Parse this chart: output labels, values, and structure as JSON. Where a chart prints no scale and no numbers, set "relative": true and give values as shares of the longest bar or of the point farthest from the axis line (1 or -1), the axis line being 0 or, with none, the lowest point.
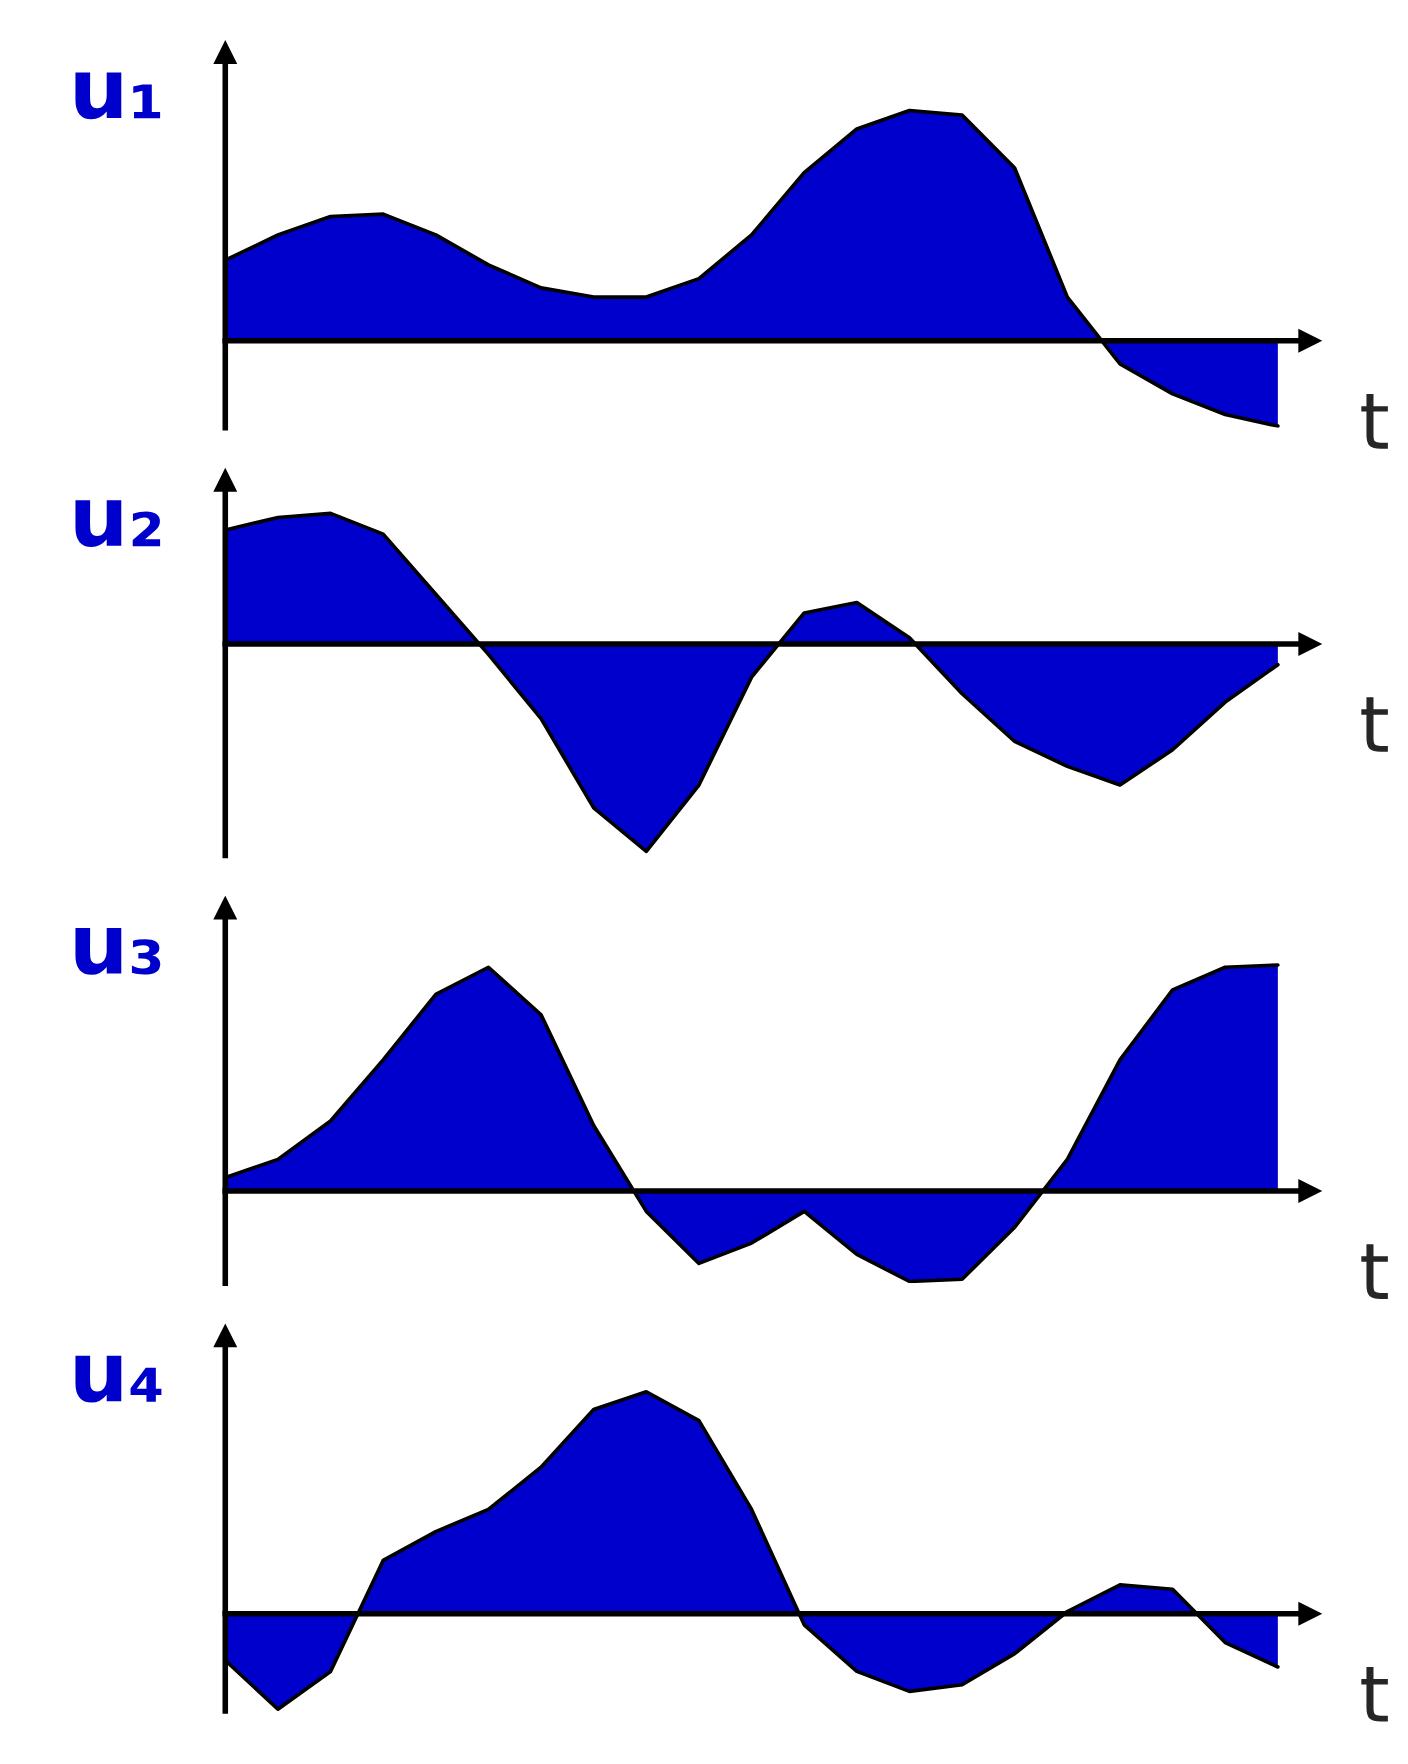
{
  "chart_data": [
    {
      "type": "area",
      "relative": true,
      "ylabel": "u₁",
      "xlabel": "t",
      "categories": [
        null,
        null,
        null,
        null,
        null,
        null,
        null,
        null,
        null,
        null,
        null,
        null,
        null,
        null,
        null,
        null,
        null,
        null,
        null,
        null,
        null
      ],
      "series": [
        {
          "color": "#0000cc",
          "values": [
            0.35,
            0.46,
            0.54,
            0.55,
            0.46,
            0.33,
            0.23,
            0.19,
            0.19,
            0.27,
            0.46,
            0.73,
            0.92,
            1.0,
            0.98,
            0.75,
            0.19,
            -0.1,
            -0.23,
            -0.32,
            -0.37
          ]
        }
      ]
    },
    {
      "type": "area",
      "relative": true,
      "ylabel": "u₂",
      "xlabel": "t",
      "categories": [
        null,
        null,
        null,
        null,
        null,
        null,
        null,
        null,
        null,
        null,
        null,
        null,
        null,
        null,
        null,
        null,
        null,
        null,
        null,
        null,
        null
      ],
      "series": [
        {
          "color": "#0000cc",
          "values": [
            0.55,
            0.61,
            0.63,
            0.53,
            0.24,
            -0.05,
            -0.36,
            -0.79,
            -1.0,
            -0.68,
            -0.16,
            0.15,
            0.2,
            0.03,
            -0.24,
            -0.47,
            -0.59,
            -0.68,
            -0.51,
            -0.28,
            -0.1
          ]
        }
      ]
    },
    {
      "type": "area",
      "relative": true,
      "ylabel": "u₃",
      "xlabel": "t",
      "categories": [
        null,
        null,
        null,
        null,
        null,
        null,
        null,
        null,
        null,
        null,
        null,
        null,
        null,
        null,
        null,
        null,
        null,
        null,
        null,
        null,
        null
      ],
      "series": [
        {
          "color": "#0000cc",
          "values": [
            0.06,
            0.14,
            0.31,
            0.58,
            0.87,
            0.99,
            0.78,
            0.29,
            -0.09,
            -0.32,
            -0.23,
            -0.09,
            -0.28,
            -0.4,
            -0.39,
            -0.16,
            0.14,
            0.58,
            0.89,
            0.99,
            1.0
          ]
        }
      ]
    },
    {
      "type": "area",
      "relative": true,
      "ylabel": "u₄",
      "xlabel": "t",
      "categories": [
        null,
        null,
        null,
        null,
        null,
        null,
        null,
        null,
        null,
        null,
        null,
        null,
        null,
        null,
        null,
        null,
        null,
        null,
        null,
        null,
        null
      ],
      "series": [
        {
          "color": "#0000cc",
          "values": [
            -0.21,
            -0.43,
            -0.26,
            0.24,
            0.37,
            0.47,
            0.66,
            0.92,
            1.0,
            0.87,
            0.47,
            -0.05,
            -0.26,
            -0.35,
            -0.32,
            -0.18,
            0.01,
            0.13,
            0.11,
            -0.13,
            -0.24
          ]
        }
      ]
    }
  ]
}
